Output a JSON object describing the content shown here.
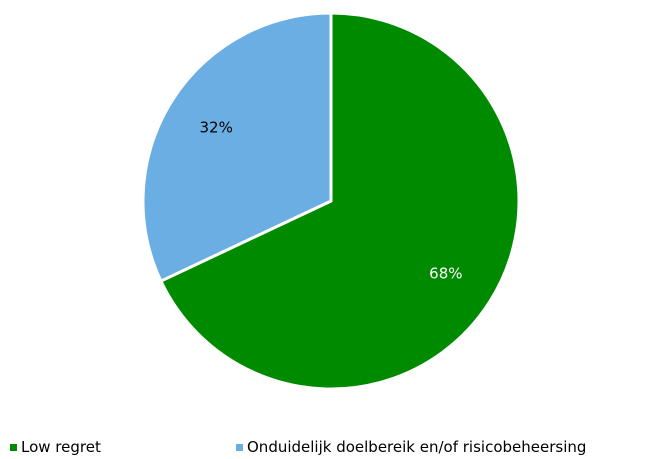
{
  "chart_data": {
    "type": "pie",
    "categories": [
      "Low regret",
      "Onduidelijk doelbereik en/of risicobeheersing"
    ],
    "values": [
      68,
      32
    ],
    "data_labels": [
      "68%",
      "32%"
    ],
    "colors": [
      "#008a00",
      "#6aaee3"
    ],
    "label_colors": [
      "#ffffff",
      "#000000"
    ],
    "legend_position": "bottom",
    "start_angle": "12 o'clock, clockwise"
  }
}
